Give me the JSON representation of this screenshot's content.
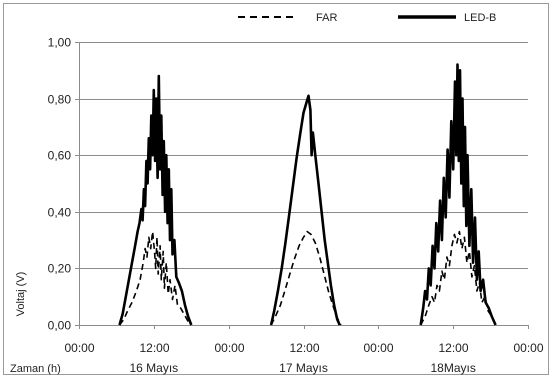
{
  "chart_data": {
    "type": "line",
    "title": "",
    "xlabel": "Zaman (h)",
    "ylabel": "Voltaj (V)",
    "ylim": [
      0,
      1.0
    ],
    "yticks": [
      "0,00",
      "0,20",
      "0,40",
      "0,60",
      "0,80",
      "1,00"
    ],
    "ytick_values": [
      0,
      0.2,
      0.4,
      0.6,
      0.8,
      1.0
    ],
    "xlim": [
      0,
      72
    ],
    "xticks": [
      "00:00",
      "12:00",
      "00:00",
      "12:00",
      "00:00",
      "12:00",
      "00:00"
    ],
    "xtick_values": [
      0,
      12,
      24,
      36,
      48,
      60,
      72
    ],
    "day_labels": [
      {
        "text": "16 Mayıs",
        "x": 12
      },
      {
        "text": "17 Mayıs",
        "x": 36
      },
      {
        "text": "18Mayıs",
        "x": 60
      }
    ],
    "legend_position": "top",
    "grid": true,
    "series": [
      {
        "name": "FAR",
        "style": "dashed",
        "color": "#000000",
        "points": [
          [
            6.5,
            0.0
          ],
          [
            7.2,
            0.02
          ],
          [
            7.8,
            0.05
          ],
          [
            8.5,
            0.08
          ],
          [
            9.2,
            0.12
          ],
          [
            9.8,
            0.16
          ],
          [
            10.3,
            0.22
          ],
          [
            10.6,
            0.27
          ],
          [
            10.9,
            0.24
          ],
          [
            11.2,
            0.31
          ],
          [
            11.5,
            0.27
          ],
          [
            11.8,
            0.33
          ],
          [
            12.1,
            0.26
          ],
          [
            12.3,
            0.2
          ],
          [
            12.5,
            0.31
          ],
          [
            12.7,
            0.18
          ],
          [
            13.0,
            0.28
          ],
          [
            13.2,
            0.16
          ],
          [
            13.5,
            0.26
          ],
          [
            13.7,
            0.13
          ],
          [
            14.0,
            0.22
          ],
          [
            14.3,
            0.11
          ],
          [
            14.6,
            0.16
          ],
          [
            15.0,
            0.09
          ],
          [
            15.4,
            0.14
          ],
          [
            15.8,
            0.07
          ],
          [
            16.3,
            0.06
          ],
          [
            16.8,
            0.04
          ],
          [
            17.3,
            0.02
          ],
          [
            17.8,
            0.0
          ],
          [
            30.8,
            0.0
          ],
          [
            31.5,
            0.03
          ],
          [
            32.3,
            0.07
          ],
          [
            33.0,
            0.12
          ],
          [
            33.8,
            0.18
          ],
          [
            34.5,
            0.23
          ],
          [
            35.3,
            0.28
          ],
          [
            36.0,
            0.31
          ],
          [
            36.6,
            0.33
          ],
          [
            37.2,
            0.32
          ],
          [
            37.9,
            0.29
          ],
          [
            38.6,
            0.24
          ],
          [
            39.3,
            0.18
          ],
          [
            40.0,
            0.12
          ],
          [
            40.7,
            0.07
          ],
          [
            41.3,
            0.03
          ],
          [
            42.0,
            0.0
          ],
          [
            54.8,
            0.0
          ],
          [
            55.5,
            0.03
          ],
          [
            56.1,
            0.07
          ],
          [
            56.6,
            0.1
          ],
          [
            57.0,
            0.08
          ],
          [
            57.4,
            0.14
          ],
          [
            57.8,
            0.12
          ],
          [
            58.2,
            0.19
          ],
          [
            58.6,
            0.16
          ],
          [
            59.0,
            0.24
          ],
          [
            59.4,
            0.21
          ],
          [
            59.8,
            0.28
          ],
          [
            60.2,
            0.32
          ],
          [
            60.6,
            0.29
          ],
          [
            61.0,
            0.33
          ],
          [
            61.4,
            0.27
          ],
          [
            61.8,
            0.31
          ],
          [
            62.2,
            0.22
          ],
          [
            62.6,
            0.26
          ],
          [
            63.0,
            0.17
          ],
          [
            63.4,
            0.21
          ],
          [
            63.8,
            0.12
          ],
          [
            64.2,
            0.15
          ],
          [
            64.6,
            0.08
          ],
          [
            65.1,
            0.1
          ],
          [
            65.6,
            0.05
          ],
          [
            66.2,
            0.03
          ],
          [
            66.8,
            0.0
          ]
        ]
      },
      {
        "name": "LED-B",
        "style": "solid",
        "color": "#000000",
        "points": [
          [
            6.5,
            0.0
          ],
          [
            7.0,
            0.04
          ],
          [
            7.5,
            0.1
          ],
          [
            8.0,
            0.16
          ],
          [
            8.5,
            0.22
          ],
          [
            9.0,
            0.28
          ],
          [
            9.4,
            0.33
          ],
          [
            9.7,
            0.36
          ],
          [
            10.0,
            0.41
          ],
          [
            10.2,
            0.37
          ],
          [
            10.4,
            0.48
          ],
          [
            10.6,
            0.42
          ],
          [
            10.8,
            0.58
          ],
          [
            11.0,
            0.5
          ],
          [
            11.2,
            0.66
          ],
          [
            11.4,
            0.55
          ],
          [
            11.6,
            0.74
          ],
          [
            11.8,
            0.6
          ],
          [
            12.0,
            0.83
          ],
          [
            12.2,
            0.58
          ],
          [
            12.4,
            0.8
          ],
          [
            12.6,
            0.52
          ],
          [
            12.8,
            0.88
          ],
          [
            13.0,
            0.55
          ],
          [
            13.2,
            0.74
          ],
          [
            13.4,
            0.46
          ],
          [
            13.6,
            0.65
          ],
          [
            13.8,
            0.4
          ],
          [
            14.0,
            0.6
          ],
          [
            14.2,
            0.36
          ],
          [
            14.4,
            0.55
          ],
          [
            14.6,
            0.3
          ],
          [
            14.8,
            0.48
          ],
          [
            15.0,
            0.25
          ],
          [
            15.3,
            0.3
          ],
          [
            15.6,
            0.17
          ],
          [
            16.0,
            0.15
          ],
          [
            16.5,
            0.12
          ],
          [
            17.0,
            0.07
          ],
          [
            17.5,
            0.03
          ],
          [
            18.0,
            0.0
          ],
          [
            30.8,
            0.0
          ],
          [
            31.3,
            0.05
          ],
          [
            31.9,
            0.12
          ],
          [
            32.5,
            0.2
          ],
          [
            33.1,
            0.29
          ],
          [
            33.7,
            0.39
          ],
          [
            34.3,
            0.49
          ],
          [
            34.9,
            0.59
          ],
          [
            35.5,
            0.68
          ],
          [
            36.0,
            0.75
          ],
          [
            36.4,
            0.78
          ],
          [
            36.8,
            0.81
          ],
          [
            37.1,
            0.76
          ],
          [
            37.3,
            0.6
          ],
          [
            37.5,
            0.68
          ],
          [
            37.9,
            0.6
          ],
          [
            38.4,
            0.5
          ],
          [
            38.9,
            0.4
          ],
          [
            39.4,
            0.3
          ],
          [
            39.9,
            0.22
          ],
          [
            40.4,
            0.14
          ],
          [
            40.9,
            0.07
          ],
          [
            41.4,
            0.02
          ],
          [
            41.8,
            0.0
          ],
          [
            54.8,
            0.0
          ],
          [
            55.2,
            0.06
          ],
          [
            55.5,
            0.12
          ],
          [
            55.8,
            0.09
          ],
          [
            56.1,
            0.2
          ],
          [
            56.4,
            0.14
          ],
          [
            56.7,
            0.28
          ],
          [
            57.0,
            0.2
          ],
          [
            57.3,
            0.36
          ],
          [
            57.6,
            0.26
          ],
          [
            57.9,
            0.44
          ],
          [
            58.2,
            0.3
          ],
          [
            58.5,
            0.52
          ],
          [
            58.8,
            0.38
          ],
          [
            59.1,
            0.62
          ],
          [
            59.4,
            0.45
          ],
          [
            59.7,
            0.72
          ],
          [
            60.0,
            0.55
          ],
          [
            60.3,
            0.86
          ],
          [
            60.5,
            0.6
          ],
          [
            60.7,
            0.92
          ],
          [
            60.9,
            0.58
          ],
          [
            61.1,
            0.9
          ],
          [
            61.3,
            0.5
          ],
          [
            61.5,
            0.8
          ],
          [
            61.7,
            0.42
          ],
          [
            61.9,
            0.7
          ],
          [
            62.1,
            0.35
          ],
          [
            62.3,
            0.6
          ],
          [
            62.6,
            0.28
          ],
          [
            62.9,
            0.48
          ],
          [
            63.2,
            0.22
          ],
          [
            63.5,
            0.38
          ],
          [
            63.8,
            0.16
          ],
          [
            64.1,
            0.26
          ],
          [
            64.4,
            0.12
          ],
          [
            64.8,
            0.16
          ],
          [
            65.2,
            0.08
          ],
          [
            65.7,
            0.06
          ],
          [
            66.2,
            0.03
          ],
          [
            66.8,
            0.0
          ]
        ]
      }
    ]
  }
}
